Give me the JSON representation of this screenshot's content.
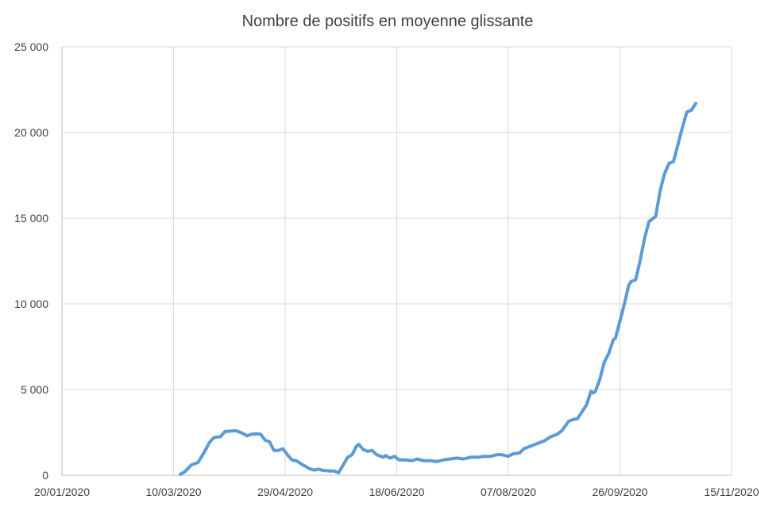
{
  "chart_data": {
    "type": "line",
    "title": "Nombre de positifs en moyenne glissante",
    "xlabel": "",
    "ylabel": "",
    "x_ticks": [
      "20/01/2020",
      "10/03/2020",
      "29/04/2020",
      "18/06/2020",
      "07/08/2020",
      "26/09/2020",
      "15/11/2020"
    ],
    "y_ticks": [
      "0",
      "5 000",
      "10 000",
      "15 000",
      "20 000",
      "25 000"
    ],
    "xlim": [
      "2020-01-20",
      "2020-11-15"
    ],
    "ylim": [
      0,
      25000
    ],
    "grid": true,
    "legend": "none",
    "series": [
      {
        "color": "#5b9bd5",
        "points": [
          [
            "2020-03-13",
            50
          ],
          [
            "2020-03-15",
            200
          ],
          [
            "2020-03-18",
            600
          ],
          [
            "2020-03-21",
            750
          ],
          [
            "2020-03-24",
            1400
          ],
          [
            "2020-03-26",
            1900
          ],
          [
            "2020-03-28",
            2200
          ],
          [
            "2020-03-31",
            2250
          ],
          [
            "2020-04-02",
            2550
          ],
          [
            "2020-04-05",
            2580
          ],
          [
            "2020-04-07",
            2600
          ],
          [
            "2020-04-10",
            2450
          ],
          [
            "2020-04-12",
            2300
          ],
          [
            "2020-04-14",
            2400
          ],
          [
            "2020-04-17",
            2420
          ],
          [
            "2020-04-18",
            2400
          ],
          [
            "2020-04-20",
            2050
          ],
          [
            "2020-04-22",
            1950
          ],
          [
            "2020-04-24",
            1450
          ],
          [
            "2020-04-26",
            1450
          ],
          [
            "2020-04-28",
            1550
          ],
          [
            "2020-04-30",
            1200
          ],
          [
            "2020-05-02",
            900
          ],
          [
            "2020-05-04",
            850
          ],
          [
            "2020-05-07",
            600
          ],
          [
            "2020-05-10",
            380
          ],
          [
            "2020-05-12",
            300
          ],
          [
            "2020-05-14",
            350
          ],
          [
            "2020-05-16",
            280
          ],
          [
            "2020-05-19",
            250
          ],
          [
            "2020-05-21",
            250
          ],
          [
            "2020-05-23",
            150
          ],
          [
            "2020-05-25",
            600
          ],
          [
            "2020-05-27",
            1050
          ],
          [
            "2020-05-29",
            1200
          ],
          [
            "2020-05-31",
            1700
          ],
          [
            "2020-06-01",
            1800
          ],
          [
            "2020-06-03",
            1500
          ],
          [
            "2020-06-05",
            1400
          ],
          [
            "2020-06-07",
            1450
          ],
          [
            "2020-06-09",
            1200
          ],
          [
            "2020-06-12",
            1050
          ],
          [
            "2020-06-13",
            1150
          ],
          [
            "2020-06-15",
            1000
          ],
          [
            "2020-06-17",
            1100
          ],
          [
            "2020-06-19",
            900
          ],
          [
            "2020-06-22",
            900
          ],
          [
            "2020-06-25",
            850
          ],
          [
            "2020-06-27",
            950
          ],
          [
            "2020-06-30",
            850
          ],
          [
            "2020-07-03",
            850
          ],
          [
            "2020-07-06",
            800
          ],
          [
            "2020-07-09",
            900
          ],
          [
            "2020-07-12",
            950
          ],
          [
            "2020-07-15",
            1000
          ],
          [
            "2020-07-18",
            950
          ],
          [
            "2020-07-21",
            1050
          ],
          [
            "2020-07-24",
            1050
          ],
          [
            "2020-07-27",
            1100
          ],
          [
            "2020-07-30",
            1100
          ],
          [
            "2020-08-02",
            1200
          ],
          [
            "2020-08-04",
            1200
          ],
          [
            "2020-08-07",
            1100
          ],
          [
            "2020-08-09",
            1250
          ],
          [
            "2020-08-12",
            1300
          ],
          [
            "2020-08-14",
            1550
          ],
          [
            "2020-08-17",
            1700
          ],
          [
            "2020-08-20",
            1850
          ],
          [
            "2020-08-23",
            2000
          ],
          [
            "2020-08-26",
            2250
          ],
          [
            "2020-08-29",
            2400
          ],
          [
            "2020-08-31",
            2600
          ],
          [
            "2020-09-03",
            3150
          ],
          [
            "2020-09-05",
            3250
          ],
          [
            "2020-09-07",
            3300
          ],
          [
            "2020-09-09",
            3700
          ],
          [
            "2020-09-11",
            4100
          ],
          [
            "2020-09-13",
            4900
          ],
          [
            "2020-09-14",
            4800
          ],
          [
            "2020-09-15",
            4900
          ],
          [
            "2020-09-17",
            5600
          ],
          [
            "2020-09-19",
            6600
          ],
          [
            "2020-09-21",
            7100
          ],
          [
            "2020-09-23",
            7900
          ],
          [
            "2020-09-24",
            8000
          ],
          [
            "2020-09-26",
            9000
          ],
          [
            "2020-09-28",
            10000
          ],
          [
            "2020-09-30",
            11100
          ],
          [
            "2020-10-01",
            11300
          ],
          [
            "2020-10-03",
            11400
          ],
          [
            "2020-10-05",
            12500
          ],
          [
            "2020-10-07",
            13800
          ],
          [
            "2020-10-09",
            14800
          ],
          [
            "2020-10-11",
            15000
          ],
          [
            "2020-10-12",
            15100
          ],
          [
            "2020-10-14",
            16600
          ],
          [
            "2020-10-16",
            17600
          ],
          [
            "2020-10-18",
            18200
          ],
          [
            "2020-10-20",
            18300
          ],
          [
            "2020-10-22",
            19300
          ],
          [
            "2020-10-24",
            20300
          ],
          [
            "2020-10-26",
            21200
          ],
          [
            "2020-10-28",
            21300
          ],
          [
            "2020-10-30",
            21700
          ]
        ]
      }
    ]
  }
}
